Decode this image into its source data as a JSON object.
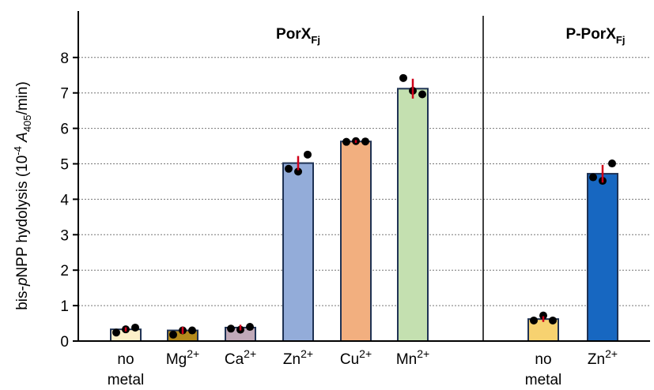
{
  "chart_data": {
    "type": "bar",
    "ylabel": {
      "prefix": "bis-",
      "italic_p": "p",
      "mid": "NPP hydolysis (10",
      "exp": "-4",
      "space": " ",
      "italic_A": "A",
      "sub": "405",
      "suffix": "/min)"
    },
    "ylim": [
      0,
      9
    ],
    "yticks": [
      0,
      1,
      2,
      3,
      4,
      5,
      6,
      7,
      8
    ],
    "grid": true,
    "panels": [
      {
        "title_main": "PorX",
        "title_sub": "Fj",
        "bars": [
          {
            "label": "no",
            "label2": "metal",
            "sup": "",
            "value": 0.33,
            "points": [
              0.24,
              0.33,
              0.38
            ],
            "sd": 0.06,
            "color": "#fcefc8"
          },
          {
            "label": "Mg",
            "label2": "",
            "sup": "2+",
            "value": 0.3,
            "points": [
              0.18,
              0.3,
              0.3
            ],
            "sd": 0.1,
            "color": "#b48a1c"
          },
          {
            "label": "Ca",
            "label2": "",
            "sup": "2+",
            "value": 0.38,
            "points": [
              0.35,
              0.32,
              0.4
            ],
            "sd": 0.08,
            "color": "#c0a9b8"
          },
          {
            "label": "Zn",
            "label2": "",
            "sup": "2+",
            "value": 5.02,
            "points": [
              4.86,
              4.78,
              5.26
            ],
            "sd": 0.2,
            "color": "#93acd9"
          },
          {
            "label": "Cu",
            "label2": "",
            "sup": "2+",
            "value": 5.63,
            "points": [
              5.62,
              5.64,
              5.63
            ],
            "sd": 0.04,
            "color": "#f2af7f"
          },
          {
            "label": "Mn",
            "label2": "",
            "sup": "2+",
            "value": 7.12,
            "points": [
              7.42,
              7.06,
              6.96
            ],
            "sd": 0.28,
            "color": "#c4e0b0"
          }
        ]
      },
      {
        "title_main": "P-PorX",
        "title_sub": "Fj",
        "bars": [
          {
            "label": "no",
            "label2": "metal",
            "sup": "",
            "value": 0.62,
            "points": [
              0.58,
              0.72,
              0.58
            ],
            "sd": 0.08,
            "color": "#f7d270"
          },
          {
            "label": "Zn",
            "label2": "",
            "sup": "2+",
            "value": 4.72,
            "points": [
              4.62,
              4.52,
              5.01
            ],
            "sd": 0.25,
            "color": "#1767c1"
          }
        ]
      }
    ],
    "colors": {
      "bar_edge": "#1f3254",
      "error_bar": "#d0001a",
      "points": "#000000",
      "grid": "#777777"
    }
  }
}
